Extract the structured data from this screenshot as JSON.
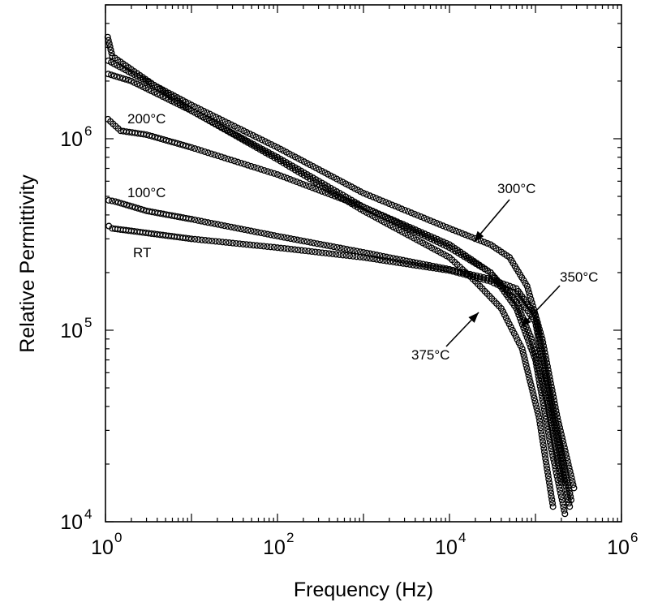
{
  "chart_data": {
    "type": "scatter",
    "title": "",
    "xlabel": "Frequency (Hz)",
    "ylabel": "Relative Permittivity",
    "xscale": "log",
    "yscale": "log",
    "xlim": [
      1,
      1000000
    ],
    "ylim": [
      10000,
      5000000
    ],
    "grid": false,
    "marker": "open-circle",
    "x_ticks": [
      {
        "base": "10",
        "exp": "0",
        "value": 1
      },
      {
        "base": "10",
        "exp": "2",
        "value": 100
      },
      {
        "base": "10",
        "exp": "4",
        "value": 10000
      },
      {
        "base": "10",
        "exp": "6",
        "value": 1000000
      }
    ],
    "y_ticks": [
      {
        "base": "10",
        "exp": "4",
        "value": 10000
      },
      {
        "base": "10",
        "exp": "5",
        "value": 100000
      },
      {
        "base": "10",
        "exp": "6",
        "value": 1000000
      }
    ],
    "series": [
      {
        "name": "RT",
        "points": [
          [
            1,
            360000
          ],
          [
            1.2,
            340000
          ],
          [
            2,
            330000
          ],
          [
            10,
            300000
          ],
          [
            100,
            270000
          ],
          [
            1000,
            240000
          ],
          [
            10000,
            205000
          ],
          [
            30000,
            180000
          ],
          [
            60000,
            155000
          ],
          [
            100000,
            110000
          ],
          [
            150000,
            40000
          ],
          [
            250000,
            12000
          ]
        ]
      },
      {
        "name": "100°C",
        "points": [
          [
            1,
            480000
          ],
          [
            1.3,
            470000
          ],
          [
            3,
            420000
          ],
          [
            10,
            380000
          ],
          [
            100,
            310000
          ],
          [
            1000,
            255000
          ],
          [
            10000,
            208000
          ],
          [
            30000,
            185000
          ],
          [
            60000,
            165000
          ],
          [
            100000,
            120000
          ],
          [
            150000,
            45000
          ],
          [
            260000,
            13000
          ]
        ]
      },
      {
        "name": "200°C",
        "points": [
          [
            1,
            1300000
          ],
          [
            1.5,
            1100000
          ],
          [
            3,
            1050000
          ],
          [
            10,
            900000
          ],
          [
            100,
            650000
          ],
          [
            1000,
            440000
          ],
          [
            10000,
            280000
          ],
          [
            30000,
            200000
          ],
          [
            60000,
            130000
          ],
          [
            100000,
            70000
          ],
          [
            150000,
            25000
          ],
          [
            220000,
            11000
          ]
        ]
      },
      {
        "name": "300°C",
        "points": [
          [
            1,
            2600000
          ],
          [
            2,
            2200000
          ],
          [
            10,
            1500000
          ],
          [
            100,
            900000
          ],
          [
            1000,
            520000
          ],
          [
            10000,
            340000
          ],
          [
            30000,
            280000
          ],
          [
            50000,
            240000
          ],
          [
            80000,
            170000
          ],
          [
            120000,
            90000
          ],
          [
            180000,
            35000
          ],
          [
            280000,
            15000
          ]
        ]
      },
      {
        "name": "350°C",
        "points": [
          [
            1,
            2200000
          ],
          [
            2,
            2000000
          ],
          [
            10,
            1400000
          ],
          [
            100,
            800000
          ],
          [
            1000,
            440000
          ],
          [
            10000,
            270000
          ],
          [
            30000,
            200000
          ],
          [
            60000,
            140000
          ],
          [
            90000,
            90000
          ],
          [
            140000,
            40000
          ],
          [
            200000,
            16000
          ]
        ]
      },
      {
        "name": "375°C",
        "points": [
          [
            1,
            3800000
          ],
          [
            1.2,
            2700000
          ],
          [
            2,
            2300000
          ],
          [
            10,
            1400000
          ],
          [
            100,
            780000
          ],
          [
            1000,
            420000
          ],
          [
            10000,
            240000
          ],
          [
            20000,
            180000
          ],
          [
            40000,
            130000
          ],
          [
            70000,
            80000
          ],
          [
            110000,
            35000
          ],
          [
            160000,
            12000
          ]
        ]
      }
    ],
    "annotations": [
      {
        "text": "RT",
        "arrow": false
      },
      {
        "text": "100°C",
        "arrow": false
      },
      {
        "text": "200°C",
        "arrow": false
      },
      {
        "text": "300°C",
        "arrow": true
      },
      {
        "text": "350°C",
        "arrow": true
      },
      {
        "text": "375°C",
        "arrow": true
      }
    ]
  }
}
